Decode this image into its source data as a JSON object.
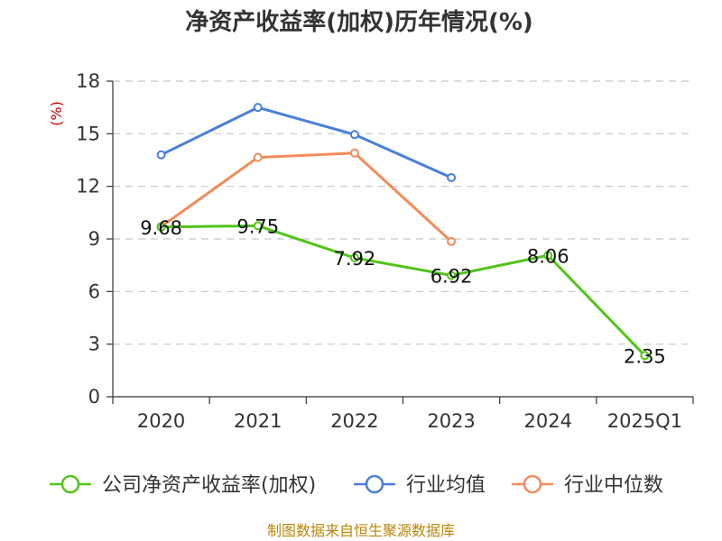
{
  "chart_data": {
    "type": "line",
    "title": "净资产收益率(加权)历年情况(%)",
    "y_unit": "(%)",
    "categories": [
      "2020",
      "2021",
      "2022",
      "2023",
      "2024",
      "2025Q1"
    ],
    "ylim": [
      0,
      18
    ],
    "yticks": [
      0,
      3,
      6,
      9,
      12,
      15,
      18
    ],
    "grid": true,
    "legend_position": "bottom",
    "series": [
      {
        "name": "公司净资产收益率(加权)",
        "color": "#52c41a",
        "values": [
          9.68,
          9.75,
          7.92,
          6.92,
          8.06,
          2.35
        ],
        "labels": [
          "9.68",
          "9.75",
          "7.92",
          "6.92",
          "8.06",
          "2.35"
        ]
      },
      {
        "name": "行业均值",
        "color": "#4a7fdc",
        "values": [
          13.8,
          16.5,
          14.95,
          12.5,
          null,
          null
        ]
      },
      {
        "name": "行业中位数",
        "color": "#f28c5a",
        "values": [
          9.7,
          13.65,
          13.9,
          8.85,
          null,
          null
        ]
      }
    ]
  },
  "footer": {
    "source": "制图数据来自恒生聚源数据库"
  }
}
